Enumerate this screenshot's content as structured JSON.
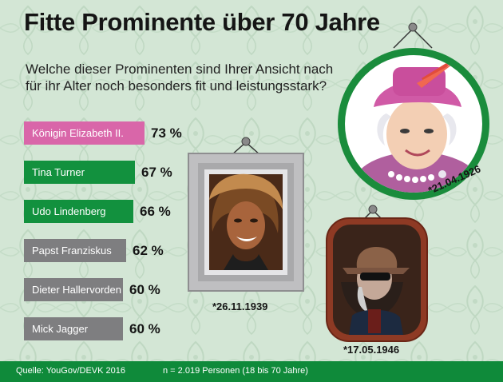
{
  "title": "Fitte Prominente über 70 Jahre",
  "question": "Welche dieser Prominenten sind Ihrer Ansicht nach für ihr Alter noch besonders fit und leistungsstark?",
  "colors": {
    "highlight": "#d966a9",
    "green": "#12913e",
    "gray": "#7e7e80",
    "footer": "#0f8a3a"
  },
  "chart_data": {
    "type": "bar",
    "orientation": "horizontal",
    "categories": [
      "Königin Elizabeth II.",
      "Tina Turner",
      "Udo Lindenberg",
      "Papst Franziskus",
      "Dieter Hallervorden",
      "Mick Jagger"
    ],
    "values": [
      73,
      67,
      66,
      62,
      60,
      60
    ],
    "value_labels": [
      "73 %",
      "67 %",
      "66 %",
      "62 %",
      "60 %",
      "60 %"
    ],
    "bar_colors": [
      "#d966a9",
      "#12913e",
      "#12913e",
      "#7e7e80",
      "#7e7e80",
      "#7e7e80"
    ],
    "unit": "%"
  },
  "portraits": {
    "queen": {
      "date": "*21.04.1926",
      "frame": "round-green",
      "icon": "queen-portrait"
    },
    "tina": {
      "date": "*26.11.1939",
      "frame": "silver-square",
      "icon": "tina-turner-portrait"
    },
    "udo": {
      "date": "*17.05.1946",
      "frame": "brown-rounded",
      "icon": "udo-lindenberg-portrait"
    }
  },
  "footer": {
    "source": "Quelle: YouGov/DEVK 2016",
    "sample": "n = 2.019 Personen (18 bis 70 Jahre)"
  }
}
